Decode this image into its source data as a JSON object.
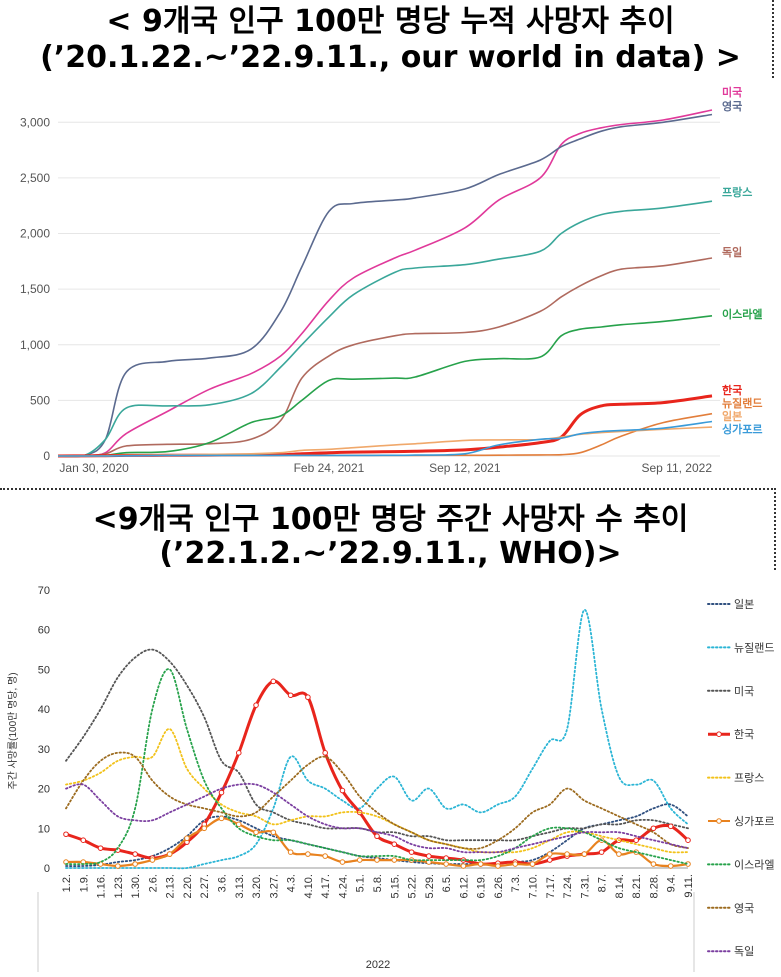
{
  "titles": {
    "top_line1": "< 9개국 인구 100만 명당 누적 사망자 추이",
    "top_line2": "(’20.1.22.~’22.9.11., our world in data) >",
    "bottom_line1": "<9개국 인구 100만 명당 주간 사망자 수 추이",
    "bottom_line2": "(’22.1.2.~’22.9.11., WHO)>"
  },
  "chart_data": [
    {
      "type": "line",
      "title": "< 9개국 인구 100만 명당 누적 사망자 추이 (’20.1.22.~’22.9.11., our world in data) >",
      "xlabel": "",
      "ylabel": "",
      "x_ticks": [
        "Jan 30, 2020",
        "Feb 24, 2021",
        "Sep 12, 2021",
        "Sep 11, 2022"
      ],
      "y_ticks": [
        "0",
        "500",
        "1,000",
        "1,500",
        "2,000",
        "2,500",
        "3,000"
      ],
      "ylim": [
        0,
        3200
      ],
      "grid": "horizontal",
      "legend": "right, end-of-line labels",
      "x": [
        "2020-01-22",
        "2020-03-01",
        "2020-04-01",
        "2020-05-01",
        "2020-07-01",
        "2020-09-01",
        "2020-11-01",
        "2020-12-15",
        "2021-01-15",
        "2021-02-24",
        "2021-04-01",
        "2021-06-01",
        "2021-07-01",
        "2021-09-12",
        "2021-11-01",
        "2022-01-01",
        "2022-02-01",
        "2022-03-01",
        "2022-04-01",
        "2022-05-01",
        "2022-07-01",
        "2022-09-11"
      ],
      "series": [
        {
          "name": "미국",
          "color": "#e0399a",
          "values": [
            0,
            5,
            30,
            200,
            400,
            600,
            740,
            900,
            1100,
            1400,
            1600,
            1780,
            1850,
            2050,
            2300,
            2500,
            2800,
            2900,
            2950,
            2980,
            3020,
            3110
          ]
        },
        {
          "name": "영국",
          "color": "#5b6a8f",
          "values": [
            0,
            5,
            150,
            750,
            850,
            880,
            960,
            1300,
            1700,
            2200,
            2270,
            2300,
            2320,
            2400,
            2530,
            2660,
            2780,
            2850,
            2920,
            2960,
            3000,
            3070
          ]
        },
        {
          "name": "프랑스",
          "color": "#3aa79a",
          "values": [
            0,
            5,
            150,
            430,
            450,
            460,
            560,
            800,
            1000,
            1250,
            1450,
            1650,
            1690,
            1720,
            1770,
            1840,
            2000,
            2100,
            2170,
            2200,
            2230,
            2290
          ]
        },
        {
          "name": "독일",
          "color": "#b06a5e",
          "values": [
            0,
            3,
            20,
            90,
            105,
            110,
            150,
            320,
            700,
            900,
            1000,
            1080,
            1100,
            1110,
            1160,
            1300,
            1430,
            1530,
            1620,
            1680,
            1710,
            1780
          ]
        },
        {
          "name": "이스라엘",
          "color": "#27a24b",
          "values": [
            0,
            0,
            5,
            30,
            40,
            120,
            300,
            360,
            500,
            680,
            690,
            700,
            710,
            850,
            875,
            890,
            1080,
            1140,
            1160,
            1180,
            1210,
            1260
          ]
        },
        {
          "name": "한국",
          "color": "#e8251c",
          "values": [
            0,
            1,
            3,
            5,
            6,
            8,
            10,
            12,
            20,
            30,
            35,
            40,
            42,
            55,
            80,
            120,
            170,
            370,
            450,
            465,
            480,
            540
          ]
        },
        {
          "name": "뉴질랜드",
          "color": "#e27e3b",
          "values": [
            0,
            0,
            1,
            4,
            5,
            5,
            5,
            5,
            5,
            5,
            5,
            5,
            5,
            6,
            7,
            10,
            12,
            30,
            100,
            180,
            300,
            380
          ]
        },
        {
          "name": "일본",
          "color": "#f0a86b",
          "values": [
            0,
            0,
            1,
            5,
            10,
            15,
            20,
            30,
            50,
            60,
            75,
            100,
            110,
            140,
            145,
            148,
            170,
            195,
            210,
            220,
            240,
            260
          ]
        },
        {
          "name": "싱가포르",
          "color": "#3a9bd9",
          "values": [
            0,
            0,
            0,
            2,
            5,
            5,
            5,
            5,
            5,
            5,
            5,
            6,
            8,
            20,
            100,
            150,
            160,
            200,
            220,
            230,
            250,
            310
          ]
        }
      ]
    },
    {
      "type": "line",
      "title": "<9개국 인구 100만 명당 주간 사망자 수 추이 (’22.1.2.~’22.9.11., WHO)>",
      "xlabel": "2022",
      "ylabel": "주간 사망률(100만 명당, 명)",
      "ylim": [
        0,
        70
      ],
      "y_ticks": [
        0,
        10,
        20,
        30,
        40,
        50,
        60,
        70
      ],
      "legend": "right",
      "categories": [
        "1.2.",
        "1.9.",
        "1.16.",
        "1.23.",
        "1.30.",
        "2.6.",
        "2.13.",
        "2.20.",
        "2.27.",
        "3.6.",
        "3.13.",
        "3.20.",
        "3.27.",
        "4.3.",
        "4.10.",
        "4.17.",
        "4.24.",
        "5.1.",
        "5.8.",
        "5.15.",
        "5.22.",
        "5.29.",
        "6.5.",
        "6.12.",
        "6.19.",
        "6.26.",
        "7.3.",
        "7.10.",
        "7.17.",
        "7.24.",
        "7.31.",
        "8.7.",
        "8.14.",
        "8.21.",
        "8.28.",
        "9.4.",
        "9.11."
      ],
      "series": [
        {
          "name": "일본",
          "color": "#2f4f7f",
          "dash": "dotted",
          "values": [
            0.5,
            0.5,
            0.8,
            1.5,
            2,
            3,
            5,
            8,
            12,
            13,
            12,
            10,
            8,
            7,
            6,
            5,
            4,
            3,
            2.5,
            2,
            1.5,
            1.2,
            1,
            1,
            1,
            1.2,
            1.5,
            2,
            4,
            7,
            10,
            11,
            12,
            13,
            15,
            16,
            13
          ]
        },
        {
          "name": "뉴질랜드",
          "color": "#2bb5d5",
          "dash": "dotted",
          "values": [
            0,
            0,
            0,
            0,
            0,
            0,
            0,
            0,
            1,
            2,
            3,
            6,
            15,
            28,
            22,
            20,
            17,
            15,
            20,
            23,
            17,
            20,
            15,
            16,
            14,
            16,
            18,
            25,
            32,
            35,
            65,
            40,
            23,
            21,
            22,
            15,
            11
          ]
        },
        {
          "name": "미국",
          "color": "#555555",
          "dash": "dotted",
          "values": [
            27,
            33,
            40,
            48,
            53,
            55,
            52,
            46,
            38,
            27,
            24,
            16,
            14,
            12,
            11,
            10,
            10,
            10,
            9,
            9,
            8,
            8,
            7,
            7,
            7,
            7,
            7,
            8,
            9,
            10,
            10,
            11,
            11,
            12,
            12,
            11,
            10
          ]
        },
        {
          "name": "한국",
          "color": "#e8251c",
          "dash": "solid",
          "bold": true,
          "values": [
            8.5,
            7,
            5,
            4.5,
            3.5,
            2.5,
            3.5,
            6.5,
            11,
            19,
            29,
            41,
            47,
            43.5,
            43,
            29,
            19.5,
            14,
            8,
            6,
            4,
            3,
            2.5,
            2,
            1,
            1.2,
            1.5,
            1,
            2,
            3,
            3.5,
            4,
            7,
            7,
            10,
            10.5,
            7
          ]
        },
        {
          "name": "프랑스",
          "color": "#f2c21a",
          "dash": "dotted",
          "values": [
            21,
            22,
            24,
            27,
            28,
            28,
            35,
            25,
            20,
            16,
            14,
            13,
            11,
            12,
            13,
            13,
            14,
            14,
            13,
            11,
            9,
            7,
            6,
            5,
            4,
            4,
            4,
            5,
            7,
            9,
            9,
            8,
            7,
            6,
            5,
            4,
            4
          ]
        },
        {
          "name": "싱가포르",
          "color": "#e8821f",
          "dash": "solid",
          "values": [
            1.5,
            1.5,
            1,
            0.5,
            1,
            2,
            3.5,
            7.5,
            10,
            12.5,
            11,
            9,
            9,
            4,
            3.5,
            3,
            1.5,
            2,
            2,
            2,
            2,
            1.5,
            1,
            0.5,
            1,
            0.5,
            1,
            1,
            3.5,
            3.5,
            3.5,
            7,
            3.5,
            4,
            1,
            0.5,
            1
          ]
        },
        {
          "name": "이스라엘",
          "color": "#27a24b",
          "dash": "dotted",
          "values": [
            1,
            1,
            1.5,
            5,
            15,
            40,
            50,
            35,
            22,
            15,
            10,
            8,
            7,
            7,
            6,
            5,
            4,
            3,
            3,
            3,
            2,
            2,
            2,
            2,
            2,
            3,
            5,
            8,
            10,
            10,
            9,
            7,
            5,
            4,
            3,
            2,
            1
          ]
        },
        {
          "name": "영국",
          "color": "#9c6b1f",
          "dash": "dotted",
          "values": [
            15,
            22,
            27,
            29,
            28,
            22,
            18,
            16,
            15,
            14,
            13,
            14,
            18,
            22,
            26,
            28,
            24,
            18,
            14,
            11,
            9,
            7,
            6,
            5,
            5,
            7,
            10,
            14,
            16,
            20,
            17,
            15,
            13,
            11,
            9,
            6,
            5
          ]
        },
        {
          "name": "독일",
          "color": "#7b3fa0",
          "dash": "dotted",
          "values": [
            20,
            21,
            17,
            13,
            12,
            12,
            14,
            16,
            18,
            20,
            21,
            21,
            19,
            16,
            13,
            11,
            10,
            10,
            9,
            8,
            6,
            5,
            5,
            4,
            4,
            4,
            5,
            6,
            7,
            8,
            9,
            9,
            9,
            8,
            7,
            6,
            5
          ]
        }
      ]
    }
  ]
}
